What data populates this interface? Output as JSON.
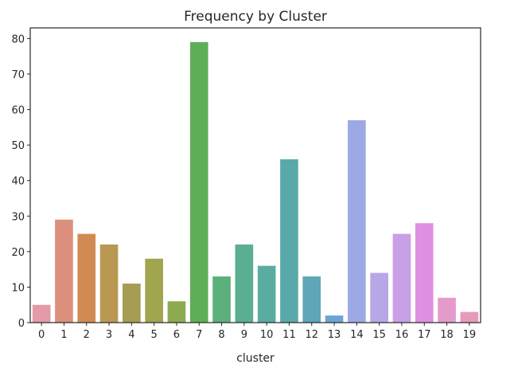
{
  "chart_data": {
    "type": "bar",
    "title": "Frequency by Cluster",
    "xlabel": "cluster",
    "ylabel": "",
    "ylim": [
      0,
      83
    ],
    "yticks": [
      0,
      10,
      20,
      30,
      40,
      50,
      60,
      70,
      80
    ],
    "categories": [
      "0",
      "1",
      "2",
      "3",
      "4",
      "5",
      "6",
      "7",
      "8",
      "9",
      "10",
      "11",
      "12",
      "13",
      "14",
      "15",
      "16",
      "17",
      "18",
      "19"
    ],
    "values": [
      5,
      29,
      25,
      22,
      11,
      18,
      6,
      79,
      13,
      22,
      16,
      46,
      13,
      2,
      57,
      14,
      25,
      28,
      7,
      3
    ],
    "colors": [
      "#e49aa7",
      "#dc8f7d",
      "#d08b52",
      "#b99852",
      "#a59e52",
      "#a0a54e",
      "#8cab50",
      "#5eae56",
      "#5bb07c",
      "#5aae91",
      "#5aaca1",
      "#5aa9aa",
      "#5ea6b8",
      "#6ba5d6",
      "#9ca9e5",
      "#b7a7e6",
      "#c99fe6",
      "#df8fe2",
      "#e59acc",
      "#e69aba"
    ],
    "grid": false
  }
}
